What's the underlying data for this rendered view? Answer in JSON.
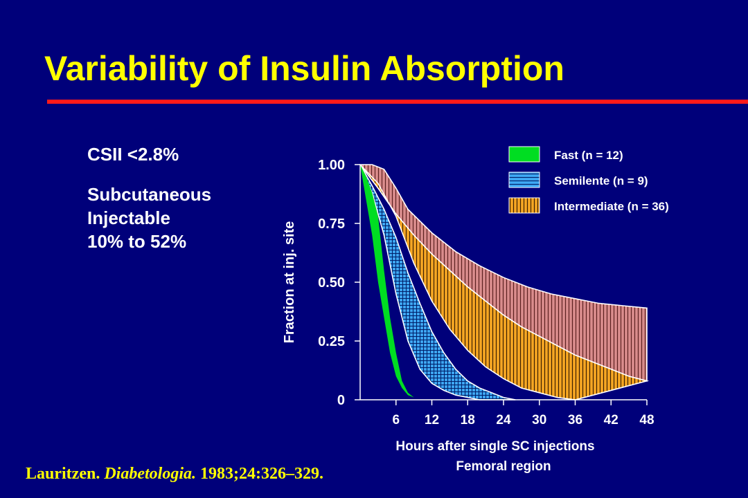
{
  "title": "Variability of Insulin Absorption",
  "sidebar": {
    "line1": "CSII <2.8%",
    "line2": "Subcutaneous",
    "line3": "Injectable",
    "line4": "10% to 52%"
  },
  "citation": {
    "author": "Lauritzen.",
    "journal": "Diabetologia.",
    "ref": "1983;24:326–329."
  },
  "colors": {
    "background": "#00007a",
    "title": "#ffff00",
    "rule": "#ff1a1a",
    "fast": "#00dd22",
    "semilente": "#3fa9f5",
    "intermediate": "#f5a623",
    "upper_band": "#d98c8c"
  },
  "chart_data": {
    "type": "area",
    "xlabel": "Hours after single SC injections",
    "xlabel2": "Femoral region",
    "ylabel": "Fraction at inj. site",
    "xlim": [
      0,
      48
    ],
    "ylim": [
      0,
      1.0
    ],
    "x_ticks": [
      "6",
      "12",
      "18",
      "24",
      "30",
      "36",
      "42",
      "48"
    ],
    "y_ticks": [
      "0",
      "0.25",
      "0.50",
      "0.75",
      "1.00"
    ],
    "legend_position": "top-right",
    "legend": [
      {
        "key": "fast",
        "label": "Fast (n = 12)"
      },
      {
        "key": "semilente",
        "label": "Semilente (n = 9)"
      },
      {
        "key": "intermediate",
        "label": "Intermediate (n = 36)"
      }
    ],
    "series": [
      {
        "key": "fast",
        "name": "Fast (n = 12)",
        "upper": [
          [
            0,
            1.0
          ],
          [
            1,
            0.85
          ],
          [
            2,
            0.7
          ],
          [
            3,
            0.5
          ],
          [
            4,
            0.35
          ],
          [
            5,
            0.2
          ],
          [
            6,
            0.1
          ],
          [
            7,
            0.05
          ],
          [
            8,
            0.02
          ],
          [
            9,
            0.01
          ]
        ],
        "lower": [
          [
            0,
            1.0
          ],
          [
            1,
            0.95
          ],
          [
            2,
            0.88
          ],
          [
            3,
            0.78
          ],
          [
            4,
            0.55
          ],
          [
            5,
            0.35
          ],
          [
            6,
            0.2
          ],
          [
            7,
            0.08
          ],
          [
            8,
            0.03
          ],
          [
            9,
            0.01
          ]
        ]
      },
      {
        "key": "semilente",
        "name": "Semilente (n = 9)",
        "upper": [
          [
            0,
            1.0
          ],
          [
            2,
            0.91
          ],
          [
            4,
            0.81
          ],
          [
            6,
            0.69
          ],
          [
            8,
            0.54
          ],
          [
            10,
            0.41
          ],
          [
            12,
            0.29
          ],
          [
            14,
            0.2
          ],
          [
            16,
            0.13
          ],
          [
            18,
            0.08
          ],
          [
            20,
            0.05
          ],
          [
            22,
            0.03
          ],
          [
            24,
            0.01
          ],
          [
            26,
            0.0
          ]
        ],
        "lower": [
          [
            0,
            1.0
          ],
          [
            2,
            0.88
          ],
          [
            4,
            0.7
          ],
          [
            6,
            0.45
          ],
          [
            8,
            0.25
          ],
          [
            10,
            0.13
          ],
          [
            12,
            0.07
          ],
          [
            14,
            0.04
          ],
          [
            16,
            0.02
          ],
          [
            18,
            0.01
          ],
          [
            20,
            0.0
          ]
        ]
      },
      {
        "key": "intermediate",
        "name": "Intermediate (n = 36)",
        "upper": [
          [
            0,
            1.0
          ],
          [
            3,
            0.9
          ],
          [
            6,
            0.79
          ],
          [
            9,
            0.7
          ],
          [
            12,
            0.62
          ],
          [
            15,
            0.55
          ],
          [
            18,
            0.48
          ],
          [
            21,
            0.42
          ],
          [
            24,
            0.36
          ],
          [
            27,
            0.31
          ],
          [
            30,
            0.27
          ],
          [
            33,
            0.23
          ],
          [
            36,
            0.19
          ],
          [
            39,
            0.16
          ],
          [
            42,
            0.13
          ],
          [
            45,
            0.1
          ],
          [
            48,
            0.08
          ]
        ],
        "lower": [
          [
            0,
            1.0
          ],
          [
            3,
            0.92
          ],
          [
            6,
            0.78
          ],
          [
            9,
            0.58
          ],
          [
            12,
            0.42
          ],
          [
            15,
            0.3
          ],
          [
            18,
            0.21
          ],
          [
            21,
            0.14
          ],
          [
            24,
            0.09
          ],
          [
            27,
            0.05
          ],
          [
            30,
            0.03
          ],
          [
            33,
            0.01
          ],
          [
            36,
            0.0
          ]
        ]
      },
      {
        "key": "upper_band",
        "upper": [
          [
            0,
            1.0
          ],
          [
            2,
            1.0
          ],
          [
            4,
            0.98
          ],
          [
            6,
            0.9
          ],
          [
            8,
            0.81
          ],
          [
            12,
            0.71
          ],
          [
            16,
            0.63
          ],
          [
            20,
            0.57
          ],
          [
            24,
            0.52
          ],
          [
            28,
            0.48
          ],
          [
            32,
            0.45
          ],
          [
            36,
            0.43
          ],
          [
            40,
            0.41
          ],
          [
            44,
            0.4
          ],
          [
            48,
            0.39
          ]
        ],
        "lower": [
          [
            0,
            1.0
          ],
          [
            3,
            0.9
          ],
          [
            6,
            0.79
          ],
          [
            9,
            0.7
          ],
          [
            12,
            0.62
          ],
          [
            15,
            0.55
          ],
          [
            18,
            0.48
          ],
          [
            21,
            0.42
          ],
          [
            24,
            0.36
          ],
          [
            27,
            0.31
          ],
          [
            30,
            0.27
          ],
          [
            33,
            0.23
          ],
          [
            36,
            0.19
          ],
          [
            39,
            0.16
          ],
          [
            42,
            0.13
          ],
          [
            45,
            0.1
          ],
          [
            48,
            0.08
          ]
        ]
      }
    ]
  }
}
